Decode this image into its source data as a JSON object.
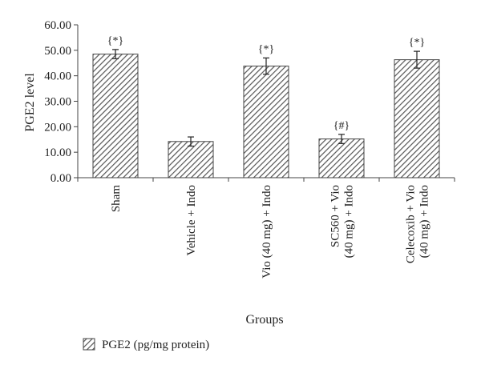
{
  "chart_data": {
    "type": "bar",
    "title": "",
    "xlabel": "Groups",
    "ylabel": "PGE2 level",
    "ylim": [
      0,
      60
    ],
    "y_ticks": [
      "0.00",
      "10.00",
      "20.00",
      "30.00",
      "40.00",
      "50.00",
      "60.00"
    ],
    "categories": [
      [
        "Sham"
      ],
      [
        "Vehicle + Indo"
      ],
      [
        "Vio (40 mg) + Indo"
      ],
      [
        "SC560 + Vio",
        "(40 mg) + Indo"
      ],
      [
        "Celecoxib + Vio",
        "(40 mg) + Indo"
      ]
    ],
    "series": [
      {
        "name": "PGE2 (pg/mg protein)",
        "values": [
          48.5,
          14.2,
          43.8,
          15.2,
          46.3
        ],
        "errors": [
          1.8,
          1.8,
          3.2,
          1.8,
          3.3
        ]
      }
    ],
    "annotations": [
      "{*}",
      "",
      "{*}",
      "{#}",
      "{*}"
    ],
    "grid": false,
    "bar_pattern": "diagonal-hatch",
    "legend_position": "bottom-left",
    "colors": {
      "bar_fill": "#ffffff",
      "hatch": "#555555",
      "axis": "#444444",
      "text": "#222222"
    }
  }
}
